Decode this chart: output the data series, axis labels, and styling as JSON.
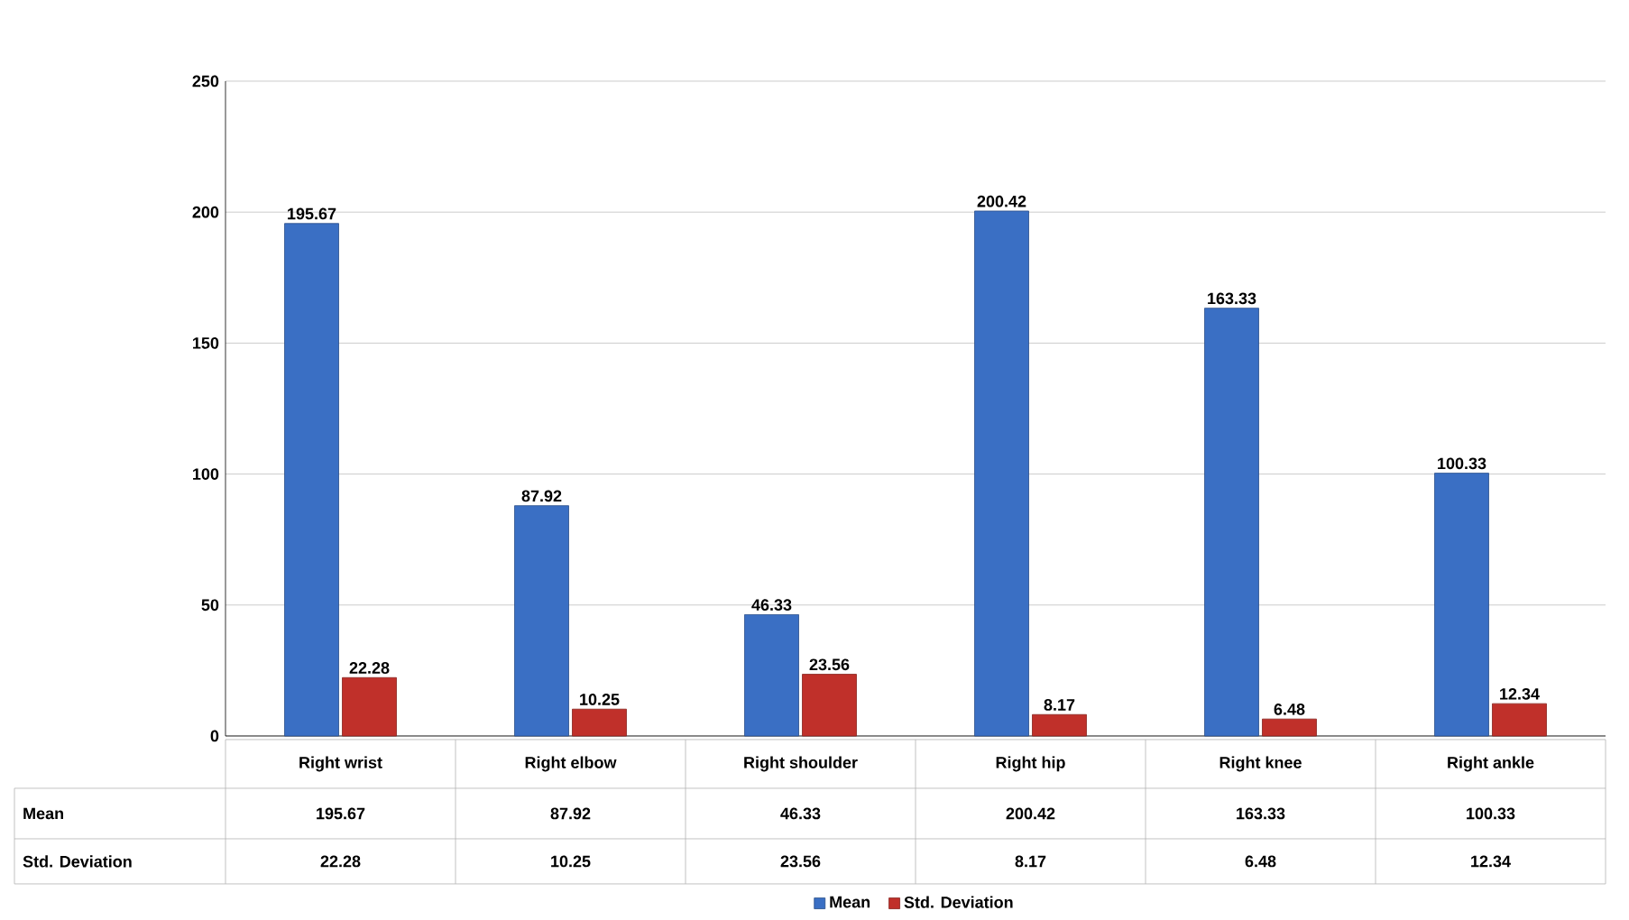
{
  "chart_data": {
    "type": "bar",
    "categories": [
      "Right wrist",
      "Right elbow",
      "Right shoulder",
      "Right hip",
      "Right knee",
      "Right ankle"
    ],
    "series": [
      {
        "name": "Mean",
        "color": "#3a6fc4",
        "values": [
          195.67,
          87.92,
          46.33,
          200.42,
          163.33,
          100.33
        ],
        "value_labels": [
          "195.67",
          "87.92",
          "46.33",
          "200.42",
          "163.33",
          "100.33"
        ]
      },
      {
        "name": "Std. Deviation",
        "color": "#c0302a",
        "values": [
          22.28,
          10.25,
          23.56,
          8.17,
          6.48,
          12.34
        ],
        "value_labels": [
          "22.28",
          "10.25",
          "23.56",
          "8.17",
          "6.48",
          "12.34"
        ]
      }
    ],
    "ylim": [
      0,
      250
    ],
    "yticks": [
      0,
      50,
      100,
      150,
      200,
      250
    ],
    "grid": "y",
    "legend": "bottom",
    "data_labels": true
  }
}
